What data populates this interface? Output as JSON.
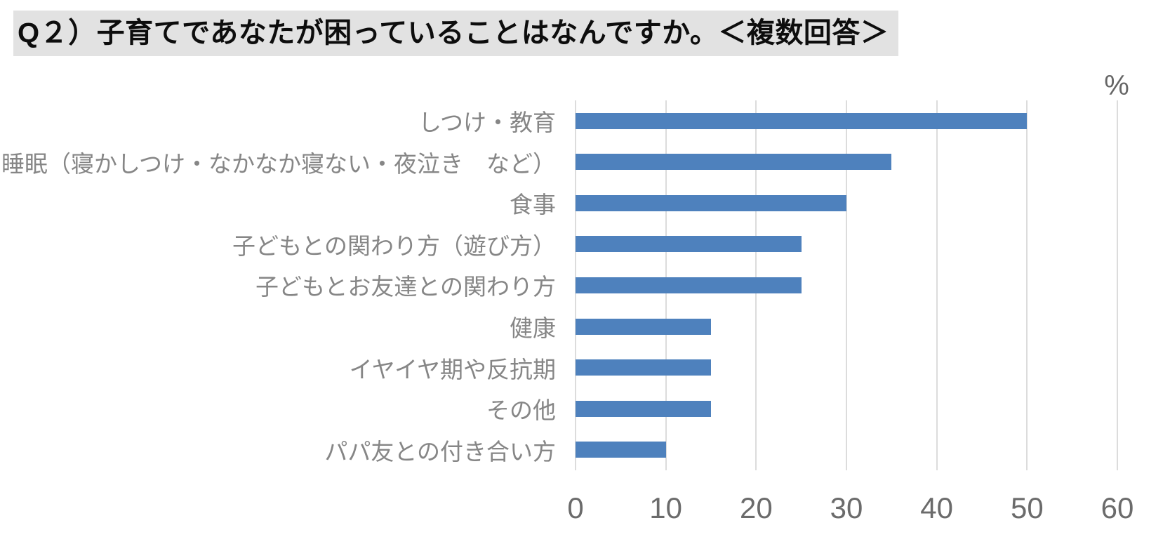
{
  "header": {
    "title": "Q２）子育てであなたが困っていることはなんですか。＜複数回答＞"
  },
  "chart_data": {
    "type": "bar",
    "orientation": "horizontal",
    "title": "Q２）子育てであなたが困っていることはなんですか。＜複数回答＞",
    "unit_label": "%",
    "categories": [
      "しつけ・教育",
      "睡眠（寝かしつけ・なかなか寝ない・夜泣き　など）",
      "食事",
      "子どもとの関わり方（遊び方）",
      "子どもとお友達との関わり方",
      "健康",
      "イヤイヤ期や反抗期",
      "その他",
      "パパ友との付き合い方"
    ],
    "values": [
      50,
      35,
      30,
      25,
      25,
      15,
      15,
      15,
      10
    ],
    "xlabel": "",
    "ylabel": "",
    "xlim": [
      0,
      60
    ],
    "x_ticks": [
      0,
      10,
      20,
      30,
      40,
      50,
      60
    ],
    "grid": true,
    "legend": "none",
    "bar_color": "#4e81bd"
  },
  "colors": {
    "title_background": "#e2e2e2",
    "title_text": "#0d0d0d",
    "bar": "#4e81bd",
    "gridline": "#dcdcdc",
    "tick_label": "#6b6b6b",
    "category_label": "#868686",
    "percent_label": "#666666",
    "page_background": "#ffffff"
  }
}
